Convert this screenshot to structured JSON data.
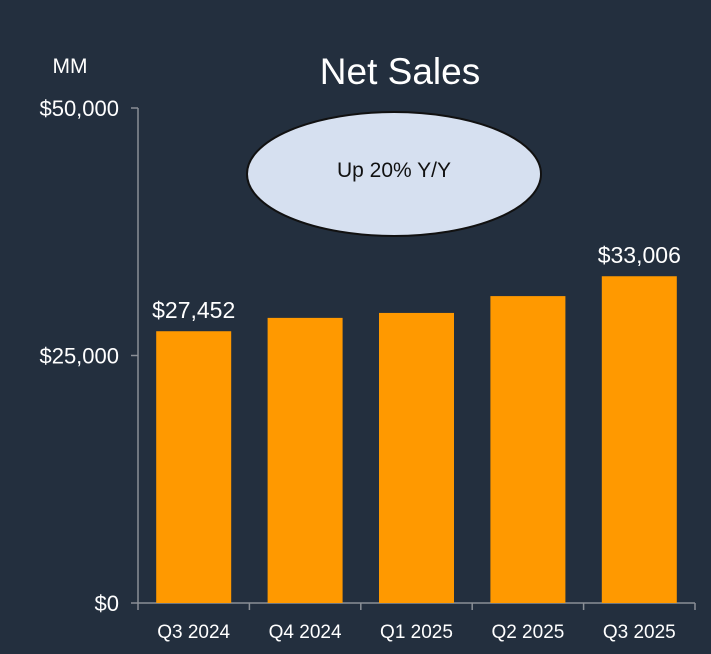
{
  "chart_data": {
    "type": "bar",
    "title": "Net Sales",
    "unit_label": "MM",
    "categories": [
      "Q3 2024",
      "Q4 2024",
      "Q1 2025",
      "Q2 2025",
      "Q3 2025"
    ],
    "values": [
      27452,
      28800,
      29300,
      31000,
      33006
    ],
    "data_labels": [
      "$27,452",
      "",
      "",
      "",
      "$33,006"
    ],
    "ylim": [
      0,
      50000
    ],
    "y_ticks": [
      {
        "value": 0,
        "label": "$0"
      },
      {
        "value": 25000,
        "label": "$25,000"
      },
      {
        "value": 50000,
        "label": "$50,000"
      }
    ],
    "annotation": "Up 20% Y/Y",
    "bar_color": "#ff9900",
    "grid": false
  },
  "colors": {
    "background": "#232f3e",
    "axis": "#8a8f96",
    "callout_fill": "#d6e0f0",
    "callout_stroke": "#111111"
  }
}
